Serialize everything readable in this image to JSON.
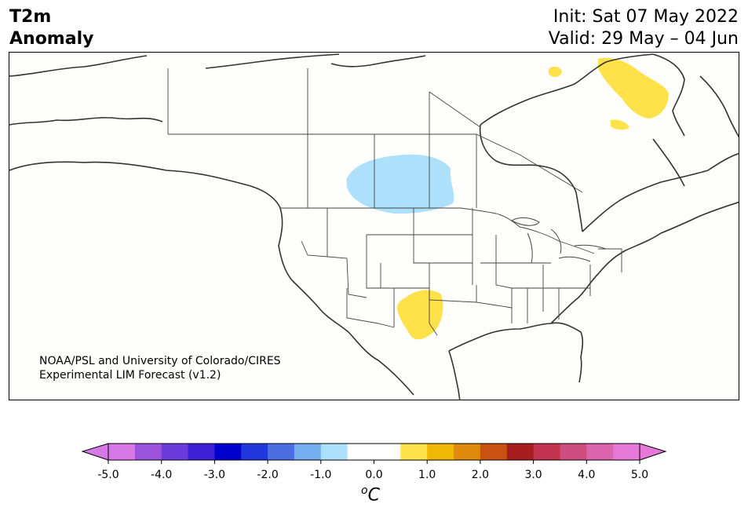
{
  "header": {
    "title_line1": "T2m",
    "title_line2": "Anomaly",
    "init": "Init: Sat 07 May 2022",
    "valid": "Valid: 29 May – 04 Jun"
  },
  "map": {
    "credit_line1": "NOAA/PSL and University of Colorado/CIRES",
    "credit_line2": "Experimental LIM Forecast (v1.2)",
    "anomaly_regions": [
      {
        "name": "Canadian Prairies",
        "category": "-1.0 to -0.5",
        "color": "#ace0fb"
      },
      {
        "name": "New Mexico / West Texas",
        "category": "0.5 to 1.0",
        "color": "#ffe14a"
      },
      {
        "name": "Baffin Island",
        "category": "0.5 to 1.0",
        "color": "#ffe14a"
      }
    ]
  },
  "colorbar": {
    "ticks": [
      "-5.0",
      "-4.0",
      "-3.0",
      "-2.0",
      "-1.0",
      "0.0",
      "1.0",
      "2.0",
      "3.0",
      "4.0",
      "5.0"
    ],
    "unit_sup": "o",
    "unit_base": "C",
    "colors": [
      "#d778e8",
      "#9c53de",
      "#6b3cdb",
      "#3d1fd6",
      "#0000cf",
      "#2236de",
      "#4b6fe3",
      "#74aef0",
      "#ace0fb",
      "#ffffff",
      "#ffffff",
      "#ffe14a",
      "#f2b705",
      "#e08a0d",
      "#c95212",
      "#a81e1e",
      "#c1334f",
      "#cd4e7e",
      "#db64ad",
      "#e679d8"
    ]
  }
}
